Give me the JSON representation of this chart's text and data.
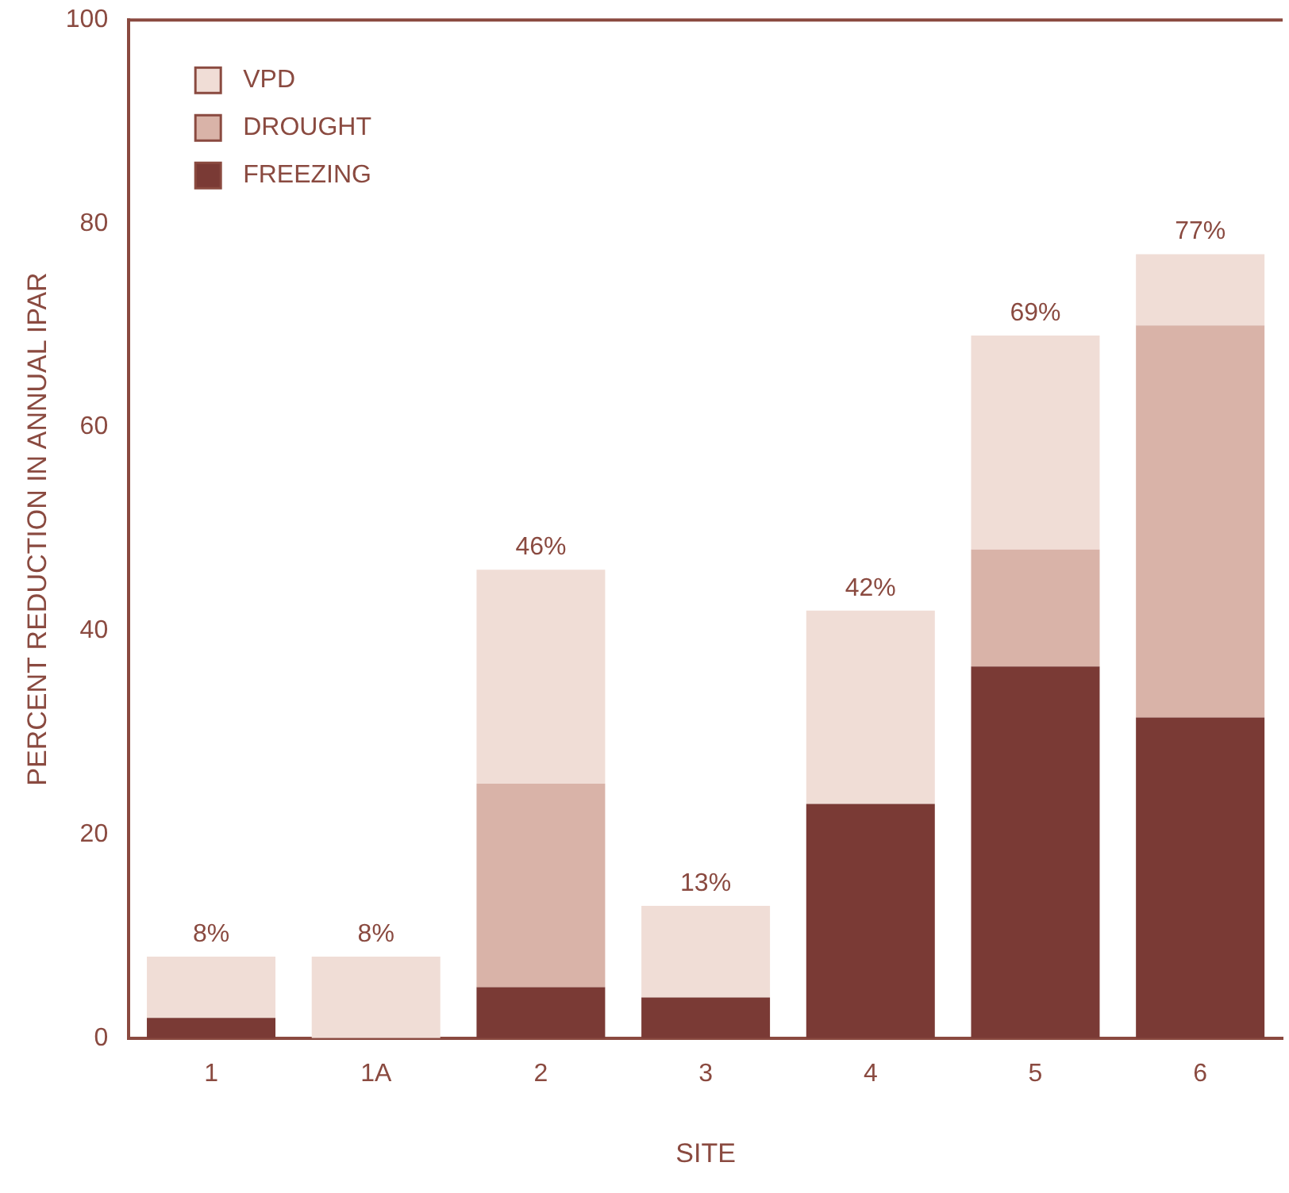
{
  "chart_data": {
    "type": "bar",
    "xlabel": "SITE",
    "ylabel": "PERCENT REDUCTION IN ANNUAL IPAR",
    "categories": [
      "1",
      "1A",
      "2",
      "3",
      "4",
      "5",
      "6"
    ],
    "stacked": true,
    "series": [
      {
        "name": "FREEZING",
        "color": "#7a3a35",
        "values": [
          2,
          0,
          5,
          4,
          23,
          36.5,
          31.5
        ]
      },
      {
        "name": "DROUGHT",
        "color": "#d9b3a8",
        "values": [
          0,
          0,
          20,
          0,
          0,
          11.5,
          38.5
        ]
      },
      {
        "name": "VPD",
        "color": "#f0ddd6",
        "values": [
          6,
          8,
          21,
          9,
          19,
          21,
          7
        ]
      }
    ],
    "totals": [
      "8%",
      "8%",
      "46%",
      "13%",
      "42%",
      "69%",
      "77%"
    ],
    "ylim": [
      0,
      100
    ],
    "yticks": [
      0,
      20,
      40,
      60,
      80,
      100
    ],
    "legend": "top left"
  }
}
